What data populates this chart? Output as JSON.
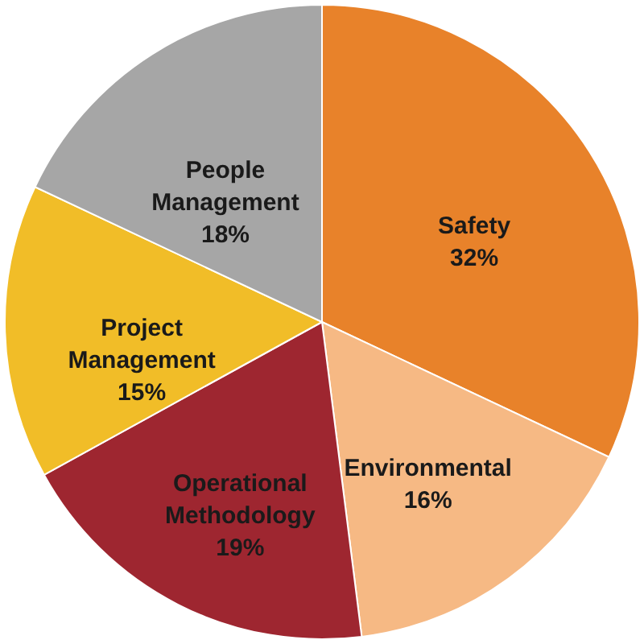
{
  "chart_data": {
    "type": "pie",
    "categories": [
      "Safety",
      "Environmental",
      "Operational Methodology",
      "Project Management",
      "People Management"
    ],
    "values": [
      32,
      16,
      19,
      15,
      18
    ],
    "value_labels": [
      "32%",
      "16%",
      "19%",
      "15%",
      "18%"
    ],
    "colors": [
      "#e8822a",
      "#f6b984",
      "#9e2630",
      "#f1bd28",
      "#a6a6a6"
    ],
    "legend": false
  }
}
